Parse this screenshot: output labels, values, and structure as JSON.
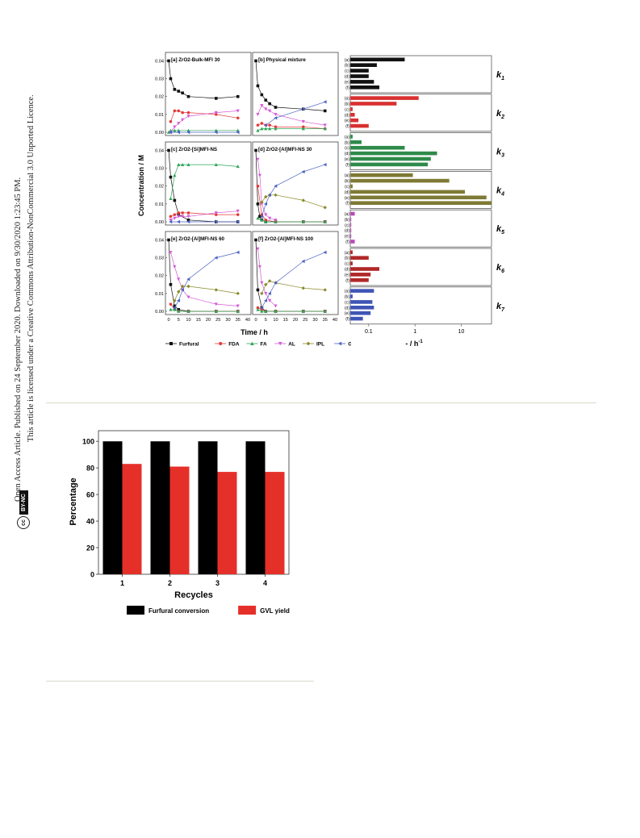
{
  "sidebar": {
    "line1": "Open Access Article. Published on 24 September 2020. Downloaded on 9/30/2020 1:23:45 PM.",
    "line2": "This article is licensed under a Creative Commons Attribution-NonCommercial 3.0 Unported Licence.",
    "badge_cc": "cc",
    "badge_text": "BY-NC"
  },
  "chart_data": [
    {
      "type": "scatter",
      "panels": [
        {
          "label": "[a] ZrO2-Bulk-MFI 30",
          "series": [
            {
              "name": "Furfural",
              "x": [
                0,
                1,
                3,
                5,
                7,
                10,
                24,
                35
              ],
              "y": [
                0.04,
                0.03,
                0.024,
                0.023,
                0.022,
                0.02,
                0.019,
                0.02
              ]
            },
            {
              "name": "FDA",
              "x": [
                1,
                3,
                5,
                7,
                10,
                24,
                35
              ],
              "y": [
                0.006,
                0.012,
                0.012,
                0.011,
                0.011,
                0.01,
                0.008
              ]
            },
            {
              "name": "FA",
              "x": [
                0,
                1,
                3,
                5,
                10,
                24,
                35
              ],
              "y": [
                0.0,
                0.001,
                0.001,
                0.001,
                0.001,
                0.001,
                0.001
              ]
            },
            {
              "name": "AL",
              "x": [
                1,
                3,
                5,
                7,
                10,
                24,
                35
              ],
              "y": [
                0.0,
                0.003,
                0.005,
                0.007,
                0.009,
                0.011,
                0.012
              ]
            },
            {
              "name": "GVL",
              "x": [
                1,
                5,
                10,
                24,
                35
              ],
              "y": [
                0.0,
                0.0,
                0.0,
                0.0,
                0.0
              ]
            }
          ]
        },
        {
          "label": "[b] Physical mixture",
          "series": [
            {
              "name": "Furfural",
              "x": [
                0,
                1,
                3,
                5,
                7,
                10,
                24,
                35
              ],
              "y": [
                0.04,
                0.026,
                0.021,
                0.018,
                0.016,
                0.014,
                0.013,
                0.012
              ]
            },
            {
              "name": "FDA",
              "x": [
                1,
                3,
                5,
                7,
                10,
                24,
                35
              ],
              "y": [
                0.004,
                0.005,
                0.004,
                0.004,
                0.003,
                0.003,
                0.002
              ]
            },
            {
              "name": "FA",
              "x": [
                1,
                3,
                5,
                7,
                10,
                24,
                35
              ],
              "y": [
                0.001,
                0.002,
                0.002,
                0.002,
                0.002,
                0.002,
                0.002
              ]
            },
            {
              "name": "AL",
              "x": [
                1,
                3,
                5,
                7,
                10,
                24,
                35
              ],
              "y": [
                0.01,
                0.015,
                0.013,
                0.012,
                0.01,
                0.006,
                0.004
              ]
            },
            {
              "name": "GVL",
              "x": [
                5,
                10,
                24,
                35
              ],
              "y": [
                0.004,
                0.008,
                0.013,
                0.017
              ]
            }
          ]
        },
        {
          "label": "[c] ZrO2-[Si]MFI-NS",
          "series": [
            {
              "name": "Furfural",
              "x": [
                0,
                1,
                3,
                5,
                10,
                24,
                35
              ],
              "y": [
                0.04,
                0.025,
                0.012,
                0.004,
                0.001,
                0.0,
                0.0
              ]
            },
            {
              "name": "FDA",
              "x": [
                1,
                3,
                5,
                7,
                10,
                24,
                35
              ],
              "y": [
                0.003,
                0.004,
                0.005,
                0.005,
                0.005,
                0.004,
                0.004
              ]
            },
            {
              "name": "FA",
              "x": [
                1,
                3,
                5,
                7,
                10,
                24,
                35
              ],
              "y": [
                0.013,
                0.026,
                0.032,
                0.032,
                0.032,
                0.032,
                0.031
              ]
            },
            {
              "name": "AL",
              "x": [
                1,
                3,
                5,
                7,
                10,
                24,
                35
              ],
              "y": [
                0.001,
                0.002,
                0.003,
                0.003,
                0.003,
                0.005,
                0.006
              ]
            },
            {
              "name": "GVL",
              "x": [
                1,
                5,
                10,
                24,
                35
              ],
              "y": [
                0.0,
                0.0,
                0.0,
                0.0,
                0.0
              ]
            }
          ]
        },
        {
          "label": "[d] ZrO2-[Al]MFI-NS 30",
          "series": [
            {
              "name": "Furfural",
              "x": [
                0,
                1,
                2,
                3,
                5,
                10,
                24,
                35
              ],
              "y": [
                0.04,
                0.01,
                0.003,
                0.001,
                0.0,
                0.0,
                0.0,
                0.0
              ]
            },
            {
              "name": "FDA",
              "x": [
                1,
                3,
                5,
                10,
                24,
                35
              ],
              "y": [
                0.02,
                0.004,
                0.001,
                0.0,
                0.0,
                0.0
              ]
            },
            {
              "name": "FA",
              "x": [
                1,
                3,
                5,
                10,
                24,
                35
              ],
              "y": [
                0.002,
                0.001,
                0.0,
                0.0,
                0.0,
                0.0
              ]
            },
            {
              "name": "AL",
              "x": [
                1,
                2,
                3,
                5,
                7,
                10
              ],
              "y": [
                0.035,
                0.026,
                0.01,
                0.004,
                0.002,
                0.001
              ]
            },
            {
              "name": "IPL",
              "x": [
                3,
                5,
                7,
                10,
                24,
                35
              ],
              "y": [
                0.011,
                0.014,
                0.015,
                0.015,
                0.012,
                0.008
              ]
            },
            {
              "name": "GVL",
              "x": [
                3,
                5,
                7,
                10,
                24,
                35
              ],
              "y": [
                0.003,
                0.01,
                0.015,
                0.02,
                0.028,
                0.032
              ]
            }
          ]
        },
        {
          "label": "[e] ZrO2-[Al]MFI-NS 60",
          "series": [
            {
              "name": "Furfural",
              "x": [
                0,
                1,
                3,
                5,
                10,
                24,
                35
              ],
              "y": [
                0.04,
                0.015,
                0.003,
                0.001,
                0.0,
                0.0,
                0.0
              ]
            },
            {
              "name": "FDA",
              "x": [
                1,
                3,
                5,
                10,
                24,
                35
              ],
              "y": [
                0.004,
                0.001,
                0.0,
                0.0,
                0.0,
                0.0
              ]
            },
            {
              "name": "FA",
              "x": [
                1,
                3,
                5,
                10,
                24,
                35
              ],
              "y": [
                0.001,
                0.001,
                0.0,
                0.0,
                0.0,
                0.0
              ]
            },
            {
              "name": "AL",
              "x": [
                1,
                3,
                5,
                7,
                10,
                24,
                35
              ],
              "y": [
                0.033,
                0.025,
                0.018,
                0.012,
                0.008,
                0.004,
                0.003
              ]
            },
            {
              "name": "IPL",
              "x": [
                3,
                5,
                7,
                10,
                24,
                35
              ],
              "y": [
                0.006,
                0.011,
                0.014,
                0.014,
                0.012,
                0.01
              ]
            },
            {
              "name": "GVL",
              "x": [
                3,
                5,
                7,
                10,
                24,
                35
              ],
              "y": [
                0.002,
                0.006,
                0.012,
                0.018,
                0.03,
                0.033
              ]
            }
          ]
        },
        {
          "label": "[f] ZrO2-[Al]MFI-NS 100",
          "series": [
            {
              "name": "Furfural",
              "x": [
                0,
                1,
                3,
                5,
                10,
                24,
                35
              ],
              "y": [
                0.04,
                0.012,
                0.002,
                0.0,
                0.0,
                0.0,
                0.0
              ]
            },
            {
              "name": "FDA",
              "x": [
                1,
                3,
                5,
                10,
                24,
                35
              ],
              "y": [
                0.002,
                0.001,
                0.0,
                0.0,
                0.0,
                0.0
              ]
            },
            {
              "name": "FA",
              "x": [
                1,
                3,
                5,
                10,
                24,
                35
              ],
              "y": [
                0.001,
                0.0,
                0.0,
                0.0,
                0.0,
                0.0
              ]
            },
            {
              "name": "AL",
              "x": [
                1,
                2,
                3,
                5,
                7,
                10
              ],
              "y": [
                0.035,
                0.025,
                0.016,
                0.01,
                0.006,
                0.003
              ]
            },
            {
              "name": "IPL",
              "x": [
                3,
                5,
                7,
                10,
                24,
                35
              ],
              "y": [
                0.01,
                0.015,
                0.017,
                0.016,
                0.013,
                0.012
              ]
            },
            {
              "name": "GVL",
              "x": [
                3,
                5,
                7,
                10,
                24,
                35
              ],
              "y": [
                0.002,
                0.006,
                0.01,
                0.016,
                0.028,
                0.033
              ]
            }
          ]
        }
      ],
      "xticks": [
        "0",
        "5",
        "10",
        "15",
        "20",
        "25",
        "30",
        "35",
        "40"
      ],
      "yticks": [
        "0.00",
        "0.01",
        "0.02",
        "0.03",
        "0.04"
      ],
      "xlabel": "Time / h",
      "ylabel": "Concentration / M",
      "xlim": [
        0,
        40
      ],
      "ylim": [
        0,
        0.042
      ],
      "legend": [
        "Furfural",
        "FDA",
        "FA",
        "AL",
        "IPL",
        "GVL"
      ],
      "colors": {
        "Furfural": "#111111",
        "FDA": "#e33a3a",
        "FA": "#2fa55a",
        "AL": "#d55ad5",
        "IPL": "#8a8a2a",
        "GVL": "#4d63c2"
      }
    },
    {
      "type": "bar",
      "orientation": "horizontal",
      "scale": "log",
      "xlabel": "- / h",
      "xlabel_sup": "-1",
      "xticks": [
        "0.1",
        "1",
        "10"
      ],
      "xlim": [
        0.04,
        45
      ],
      "row_labels": [
        "(a)",
        "(b)",
        "(c)",
        "(d)",
        "(e)",
        "(f)"
      ],
      "groups": [
        {
          "k": "k",
          "sub": "1",
          "color": "#111111",
          "values": [
            0.6,
            0.15,
            0.1,
            0.1,
            0.13,
            0.17
          ]
        },
        {
          "k": "k",
          "sub": "2",
          "color": "#d93030",
          "values": [
            1.2,
            0.4,
            0.045,
            0.05,
            0.06,
            0.1
          ]
        },
        {
          "k": "k",
          "sub": "3",
          "color": "#2e8a4a",
          "values": [
            0.045,
            0.07,
            0.6,
            3.0,
            2.2,
            1.9
          ]
        },
        {
          "k": "k",
          "sub": "4",
          "color": "#7e7a35",
          "values": [
            0.9,
            5.5,
            0.045,
            12.0,
            35.0,
            45.0
          ]
        },
        {
          "k": "k",
          "sub": "5",
          "color": "#b84ab8",
          "values": [
            0.05,
            0.042,
            0.042,
            0.042,
            0.042,
            0.05
          ]
        },
        {
          "k": "k",
          "sub": "6",
          "color": "#b02828",
          "values": [
            0.045,
            0.1,
            0.045,
            0.17,
            0.11,
            0.1
          ]
        },
        {
          "k": "k",
          "sub": "7",
          "color": "#3f55b5",
          "values": [
            0.13,
            0.045,
            0.12,
            0.13,
            0.11,
            0.075
          ]
        }
      ]
    },
    {
      "type": "bar",
      "categories": [
        "1",
        "2",
        "3",
        "4"
      ],
      "series": [
        {
          "name": "Furfural conversion",
          "values": [
            100,
            100,
            100,
            100
          ],
          "color": "#000000"
        },
        {
          "name": "GVL yield",
          "values": [
            83,
            81,
            77,
            77
          ],
          "color": "#e5302a"
        }
      ],
      "xlabel": "Recycles",
      "ylabel": "Percentage",
      "yticks": [
        "0",
        "20",
        "40",
        "60",
        "80",
        "100"
      ],
      "ylim": [
        0,
        108
      ]
    }
  ]
}
